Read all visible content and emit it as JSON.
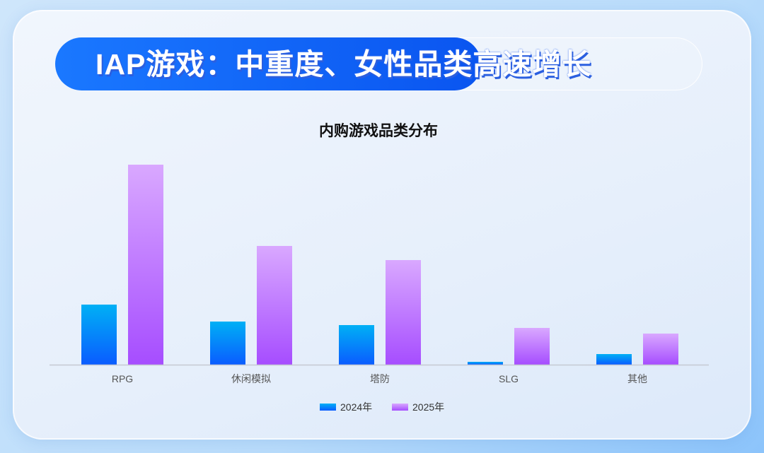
{
  "header": {
    "title": "IAP游戏：中重度、女性品类高速增长"
  },
  "chart_data": {
    "type": "bar",
    "title": "内购游戏品类分布",
    "categories": [
      "RPG",
      "休闲模拟",
      "塔防",
      "SLG",
      "其他"
    ],
    "series": [
      {
        "name": "2024年",
        "values": [
          85,
          61,
          56,
          4,
          15
        ],
        "color": "#0a8cff"
      },
      {
        "name": "2025年",
        "values": [
          283,
          168,
          148,
          52,
          44
        ],
        "color": "#c98cff"
      }
    ],
    "xlabel": "",
    "ylabel": "",
    "ylim": [
      0,
      300
    ],
    "grid": false,
    "legend": "bottom"
  }
}
